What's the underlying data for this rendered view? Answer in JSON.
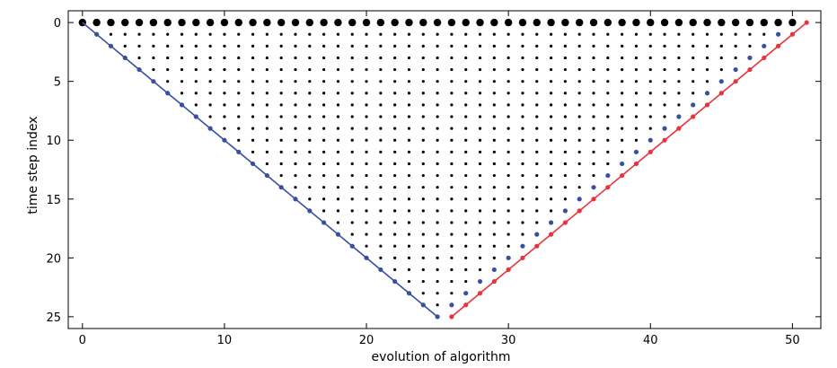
{
  "chart_data": {
    "type": "scatter",
    "title": "",
    "xlabel": "evolution of algorithm",
    "ylabel": "time step index",
    "xlim": [
      -1,
      52
    ],
    "ylim": [
      26,
      -1
    ],
    "y_inverted": true,
    "grid": false,
    "legend": "none",
    "x_ticks": [
      0,
      10,
      20,
      30,
      40,
      50
    ],
    "y_ticks": [
      0,
      5,
      10,
      15,
      20,
      25
    ],
    "x_tick_labels": [
      "0",
      "10",
      "20",
      "30",
      "40",
      "50"
    ],
    "y_tick_labels": [
      "0",
      "5",
      "10",
      "15",
      "20",
      "25"
    ],
    "colors": {
      "blue": "#3b4fa0",
      "red": "#e8323c",
      "black": "#000000"
    },
    "series": [
      {
        "style": "large-black-dots",
        "color": "#000000",
        "description": "points at y=0 for x = 0..50",
        "x_range": [
          0,
          50
        ],
        "y": 0
      },
      {
        "style": "small-black-dots",
        "color": "#000000",
        "description": "grid fill: x = y+1 .. 51-y-1 (or through x=25 for y=25 band) for y = 1..24",
        "rule": "for y in 1..25, x from y+1 to max(25, 51-y-1)"
      },
      {
        "style": "blue-line-with-dots",
        "color": "#3b4fa0",
        "description": "diagonal line y = x from (0,0) to (25,25)",
        "x": [
          0,
          25
        ],
        "y": [
          0,
          25
        ]
      },
      {
        "style": "blue-dots",
        "color": "#3b4fa0",
        "description": "points at (51-y-1? ) right edge: x = 50-y+? for y=1..24",
        "points_rule": "x = 50 - y + 0 shifted: (49,1),(48,2)...(26,24)"
      },
      {
        "style": "red-line-with-dots",
        "color": "#e8323c",
        "description": "diagonal line from (26,25) to (51,0)",
        "x": [
          26,
          51
        ],
        "y": [
          25,
          0
        ]
      }
    ]
  }
}
